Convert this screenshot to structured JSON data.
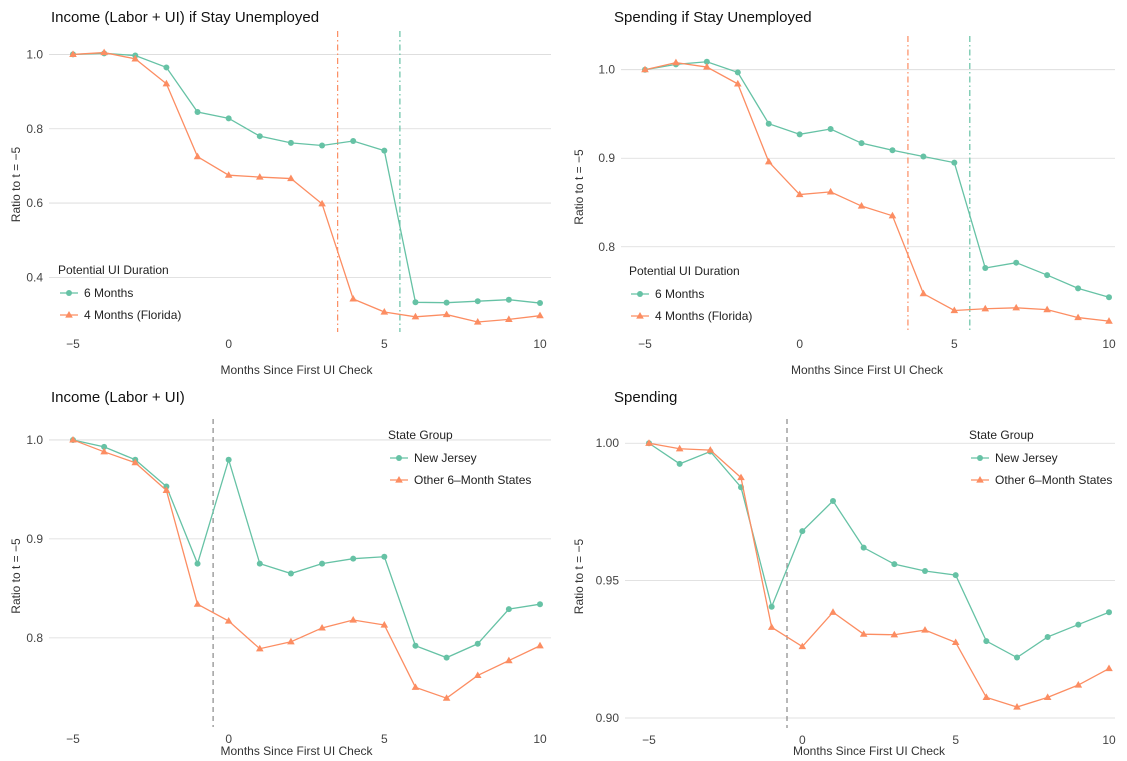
{
  "colors": {
    "series_a": "#66c2a5",
    "series_b": "#fc8d62",
    "grid": "#d9d9d9",
    "dashed": "#888888"
  },
  "chart_data": [
    {
      "type": "line",
      "title": "Income (Labor + UI) if Stay Unemployed",
      "xlabel": "Months Since First UI Check",
      "ylabel": "Ratio to t = −5",
      "xlim": [
        -5,
        10
      ],
      "ylim": [
        0.28,
        1.02
      ],
      "xticks": [
        -5,
        0,
        5,
        10
      ],
      "xtick_labels": [
        "−5",
        "0",
        "5",
        "10"
      ],
      "yticks": [
        0.4,
        0.6,
        0.8,
        1.0
      ],
      "ytick_labels": [
        "0.4",
        "0.6",
        "0.8",
        "1.0"
      ],
      "grid": "horizontal",
      "legend": {
        "title": "Potential UI Duration",
        "placement": "bottom-left"
      },
      "vlines": [
        {
          "x": 3.5,
          "color_key": "series_b",
          "style": "dashdot"
        },
        {
          "x": 5.5,
          "color_key": "series_a",
          "style": "dashdot"
        }
      ],
      "x": [
        -5,
        -4,
        -3,
        -2,
        -1,
        0,
        1,
        2,
        3,
        4,
        5,
        6,
        7,
        8,
        9,
        10
      ],
      "series": [
        {
          "name": "6 Months",
          "marker": "circle",
          "color_key": "series_a",
          "values": [
            1.0,
            1.003,
            0.997,
            0.965,
            0.845,
            0.828,
            0.78,
            0.762,
            0.755,
            0.767,
            0.741,
            0.333,
            0.332,
            0.336,
            0.34,
            0.331
          ]
        },
        {
          "name": "4 Months (Florida)",
          "marker": "triangle",
          "color_key": "series_b",
          "values": [
            1.0,
            1.005,
            0.988,
            0.921,
            0.725,
            0.675,
            0.67,
            0.666,
            0.598,
            0.342,
            0.307,
            0.294,
            0.3,
            0.28,
            0.287,
            0.297
          ]
        }
      ]
    },
    {
      "type": "line",
      "title": "Spending if Stay Unemployed",
      "xlabel": "Months Since First UI Check",
      "ylabel": "Ratio to t = −5",
      "xlim": [
        -5,
        10
      ],
      "ylim": [
        0.715,
        1.02
      ],
      "xticks": [
        -5,
        0,
        5,
        10
      ],
      "xtick_labels": [
        "−5",
        "0",
        "5",
        "10"
      ],
      "yticks": [
        0.8,
        0.9,
        1.0
      ],
      "ytick_labels": [
        "0.8",
        "0.9",
        "1.0"
      ],
      "grid": "horizontal",
      "legend": {
        "title": "Potential UI Duration",
        "placement": "bottom-left"
      },
      "vlines": [
        {
          "x": 3.5,
          "color_key": "series_b",
          "style": "dashdot"
        },
        {
          "x": 5.5,
          "color_key": "series_a",
          "style": "dashdot"
        }
      ],
      "x": [
        -5,
        -4,
        -3,
        -2,
        -1,
        0,
        1,
        2,
        3,
        4,
        5,
        6,
        7,
        8,
        9,
        10
      ],
      "series": [
        {
          "name": "6 Months",
          "marker": "circle",
          "color_key": "series_a",
          "values": [
            1.0,
            1.006,
            1.009,
            0.997,
            0.939,
            0.927,
            0.933,
            0.917,
            0.909,
            0.902,
            0.895,
            0.776,
            0.782,
            0.768,
            0.753,
            0.743
          ]
        },
        {
          "name": "4 Months (Florida)",
          "marker": "triangle",
          "color_key": "series_b",
          "values": [
            1.0,
            1.008,
            1.003,
            0.984,
            0.896,
            0.859,
            0.862,
            0.846,
            0.835,
            0.747,
            0.728,
            0.73,
            0.731,
            0.729,
            0.72,
            0.716
          ]
        }
      ]
    },
    {
      "type": "line",
      "title": "Income (Labor + UI)",
      "xlabel": "Months Since First UI Check",
      "ylabel": "Ratio to t = −5",
      "xlim": [
        -5,
        10
      ],
      "ylim": [
        0.72,
        1.005
      ],
      "xticks": [
        -5,
        0,
        5,
        10
      ],
      "xtick_labels": [
        "−5",
        "0",
        "5",
        "10"
      ],
      "yticks": [
        0.8,
        0.9,
        1.0
      ],
      "ytick_labels": [
        "0.8",
        "0.9",
        "1.0"
      ],
      "grid": "horizontal",
      "legend": {
        "title": "State Group",
        "placement": "top-right"
      },
      "vlines": [
        {
          "x": -0.5,
          "color_key": "dashed",
          "style": "dashed"
        }
      ],
      "x": [
        -5,
        -4,
        -3,
        -2,
        -1,
        0,
        1,
        2,
        3,
        4,
        5,
        6,
        7,
        8,
        9,
        10
      ],
      "series": [
        {
          "name": "New Jersey",
          "marker": "circle",
          "color_key": "series_a",
          "values": [
            1.0,
            0.993,
            0.98,
            0.953,
            0.875,
            0.98,
            0.875,
            0.865,
            0.875,
            0.88,
            0.882,
            0.792,
            0.78,
            0.794,
            0.829,
            0.834
          ]
        },
        {
          "name": "Other 6–Month States",
          "marker": "triangle",
          "color_key": "series_b",
          "values": [
            1.0,
            0.988,
            0.977,
            0.949,
            0.834,
            0.817,
            0.789,
            0.796,
            0.81,
            0.818,
            0.813,
            0.75,
            0.739,
            0.762,
            0.777,
            0.792
          ]
        }
      ]
    },
    {
      "type": "line",
      "title": "Spending",
      "xlabel": "Months Since First UI Check",
      "ylabel": "Ratio to t = −5",
      "xlim": [
        -5,
        10
      ],
      "ylim": [
        0.9,
        1.003
      ],
      "xticks": [
        -5,
        0,
        5,
        10
      ],
      "xtick_labels": [
        "−5",
        "0",
        "5",
        "10"
      ],
      "yticks": [
        0.9,
        0.95,
        1.0
      ],
      "ytick_labels": [
        "0.90",
        "0.95",
        "1.00"
      ],
      "grid": "horizontal",
      "legend": {
        "title": "State Group",
        "placement": "top-right"
      },
      "vlines": [
        {
          "x": -0.5,
          "color_key": "dashed",
          "style": "dashed"
        }
      ],
      "x": [
        -5,
        -4,
        -3,
        -2,
        -1,
        0,
        1,
        2,
        3,
        4,
        5,
        6,
        7,
        8,
        9,
        10
      ],
      "series": [
        {
          "name": "New Jersey",
          "marker": "circle",
          "color_key": "series_a",
          "values": [
            1.0,
            0.9925,
            0.997,
            0.984,
            0.9405,
            0.968,
            0.979,
            0.962,
            0.956,
            0.9535,
            0.952,
            0.928,
            0.922,
            0.9295,
            0.934,
            0.9385
          ]
        },
        {
          "name": "Other 6–Month States",
          "marker": "triangle",
          "color_key": "series_b",
          "values": [
            1.0,
            0.998,
            0.9975,
            0.9875,
            0.933,
            0.926,
            0.9385,
            0.9305,
            0.9303,
            0.932,
            0.9275,
            0.9075,
            0.904,
            0.9075,
            0.912,
            0.918
          ]
        }
      ]
    }
  ]
}
